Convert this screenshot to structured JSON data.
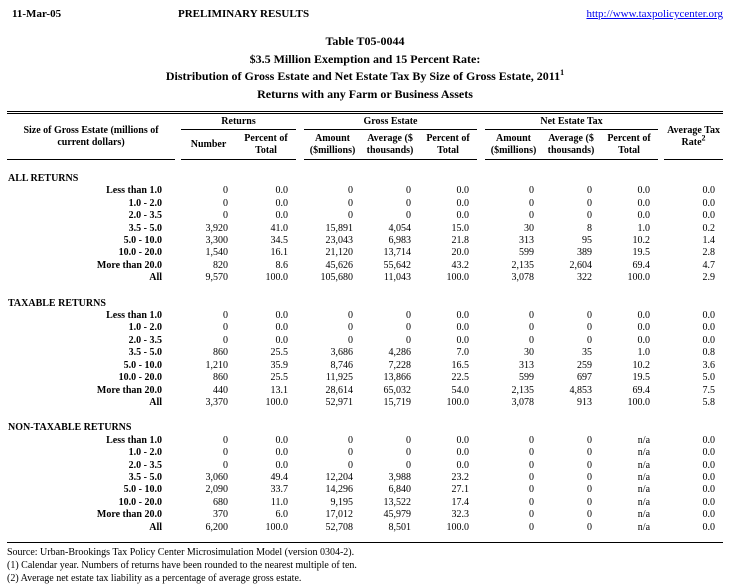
{
  "page_header": {
    "date": "11-Mar-05",
    "status": "PRELIMINARY RESULTS",
    "link": "http://www.taxpolicycenter.org"
  },
  "title": {
    "line1": "Table T05-0044",
    "line2": "$3.5 Million Exemption and 15 Percent Rate:",
    "line3": "Distribution of Gross Estate and Net Estate Tax By Size of Gross Estate, 2011",
    "line3_sup": "1",
    "line4": "Returns with any Farm or Business Assets"
  },
  "table": {
    "col_label": "Size of Gross Estate (millions of current dollars)",
    "groups": {
      "returns": "Returns",
      "gross_estate": "Gross Estate",
      "net_estate_tax": "Net Estate Tax"
    },
    "subheaders": {
      "number": "Number",
      "pct_total": "Percent of Total",
      "amount": "Amount ($millions)",
      "average": "Average ($ thousands)"
    },
    "avg_tax_rate": "Average Tax Rate",
    "avg_tax_rate_sup": "2",
    "sections": [
      {
        "name": "ALL RETURNS",
        "rows": [
          {
            "label": "Less than 1.0",
            "values": [
              "0",
              "0.0",
              "0",
              "0",
              "0.0",
              "0",
              "0",
              "0.0",
              "0.0"
            ]
          },
          {
            "label": "1.0 - 2.0",
            "values": [
              "0",
              "0.0",
              "0",
              "0",
              "0.0",
              "0",
              "0",
              "0.0",
              "0.0"
            ]
          },
          {
            "label": "2.0 - 3.5",
            "values": [
              "0",
              "0.0",
              "0",
              "0",
              "0.0",
              "0",
              "0",
              "0.0",
              "0.0"
            ]
          },
          {
            "label": "3.5 - 5.0",
            "values": [
              "3,920",
              "41.0",
              "15,891",
              "4,054",
              "15.0",
              "30",
              "8",
              "1.0",
              "0.2"
            ]
          },
          {
            "label": "5.0 - 10.0",
            "values": [
              "3,300",
              "34.5",
              "23,043",
              "6,983",
              "21.8",
              "313",
              "95",
              "10.2",
              "1.4"
            ]
          },
          {
            "label": "10.0 - 20.0",
            "values": [
              "1,540",
              "16.1",
              "21,120",
              "13,714",
              "20.0",
              "599",
              "389",
              "19.5",
              "2.8"
            ]
          },
          {
            "label": "More than 20.0",
            "values": [
              "820",
              "8.6",
              "45,626",
              "55,642",
              "43.2",
              "2,135",
              "2,604",
              "69.4",
              "4.7"
            ]
          },
          {
            "label": "All",
            "values": [
              "9,570",
              "100.0",
              "105,680",
              "11,043",
              "100.0",
              "3,078",
              "322",
              "100.0",
              "2.9"
            ]
          }
        ]
      },
      {
        "name": "TAXABLE RETURNS",
        "rows": [
          {
            "label": "Less than 1.0",
            "values": [
              "0",
              "0.0",
              "0",
              "0",
              "0.0",
              "0",
              "0",
              "0.0",
              "0.0"
            ]
          },
          {
            "label": "1.0 - 2.0",
            "values": [
              "0",
              "0.0",
              "0",
              "0",
              "0.0",
              "0",
              "0",
              "0.0",
              "0.0"
            ]
          },
          {
            "label": "2.0 - 3.5",
            "values": [
              "0",
              "0.0",
              "0",
              "0",
              "0.0",
              "0",
              "0",
              "0.0",
              "0.0"
            ]
          },
          {
            "label": "3.5 - 5.0",
            "values": [
              "860",
              "25.5",
              "3,686",
              "4,286",
              "7.0",
              "30",
              "35",
              "1.0",
              "0.8"
            ]
          },
          {
            "label": "5.0 - 10.0",
            "values": [
              "1,210",
              "35.9",
              "8,746",
              "7,228",
              "16.5",
              "313",
              "259",
              "10.2",
              "3.6"
            ]
          },
          {
            "label": "10.0 - 20.0",
            "values": [
              "860",
              "25.5",
              "11,925",
              "13,866",
              "22.5",
              "599",
              "697",
              "19.5",
              "5.0"
            ]
          },
          {
            "label": "More than 20.0",
            "values": [
              "440",
              "13.1",
              "28,614",
              "65,032",
              "54.0",
              "2,135",
              "4,853",
              "69.4",
              "7.5"
            ]
          },
          {
            "label": "All",
            "values": [
              "3,370",
              "100.0",
              "52,971",
              "15,719",
              "100.0",
              "3,078",
              "913",
              "100.0",
              "5.8"
            ]
          }
        ]
      },
      {
        "name": "NON-TAXABLE RETURNS",
        "rows": [
          {
            "label": "Less than 1.0",
            "values": [
              "0",
              "0.0",
              "0",
              "0",
              "0.0",
              "0",
              "0",
              "n/a",
              "0.0"
            ]
          },
          {
            "label": "1.0 - 2.0",
            "values": [
              "0",
              "0.0",
              "0",
              "0",
              "0.0",
              "0",
              "0",
              "n/a",
              "0.0"
            ]
          },
          {
            "label": "2.0 - 3.5",
            "values": [
              "0",
              "0.0",
              "0",
              "0",
              "0.0",
              "0",
              "0",
              "n/a",
              "0.0"
            ]
          },
          {
            "label": "3.5 - 5.0",
            "values": [
              "3,060",
              "49.4",
              "12,204",
              "3,988",
              "23.2",
              "0",
              "0",
              "n/a",
              "0.0"
            ]
          },
          {
            "label": "5.0 - 10.0",
            "values": [
              "2,090",
              "33.7",
              "14,296",
              "6,840",
              "27.1",
              "0",
              "0",
              "n/a",
              "0.0"
            ]
          },
          {
            "label": "10.0 - 20.0",
            "values": [
              "680",
              "11.0",
              "9,195",
              "13,522",
              "17.4",
              "0",
              "0",
              "n/a",
              "0.0"
            ]
          },
          {
            "label": "More than 20.0",
            "values": [
              "370",
              "6.0",
              "17,012",
              "45,979",
              "32.3",
              "0",
              "0",
              "n/a",
              "0.0"
            ]
          },
          {
            "label": "All",
            "values": [
              "6,200",
              "100.0",
              "52,708",
              "8,501",
              "100.0",
              "0",
              "0",
              "n/a",
              "0.0"
            ]
          }
        ]
      }
    ]
  },
  "footer": {
    "source": "Source: Urban-Brookings Tax Policy Center Microsimulation Model (version 0304-2).",
    "note1": "(1) Calendar year. Numbers of returns have been rounded to the nearest multiple of ten.",
    "note2": "(2) Average net estate tax liability as a percentage of average gross estate."
  }
}
